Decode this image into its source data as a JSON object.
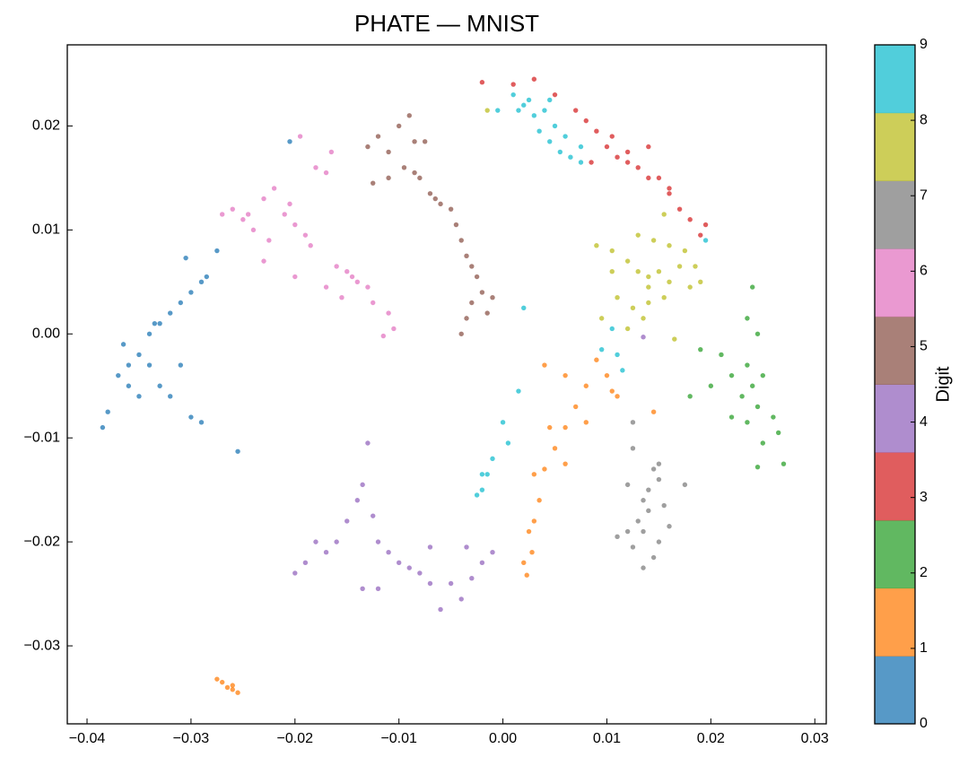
{
  "chart_data": {
    "type": "scatter",
    "title": "PHATE — MNIST",
    "xlim": [
      -0.0419,
      0.0311
    ],
    "ylim": [
      -0.0375,
      0.0278
    ],
    "xticks": [
      {
        "value": -0.04,
        "label": "−0.04"
      },
      {
        "value": -0.03,
        "label": "−0.03"
      },
      {
        "value": -0.02,
        "label": "−0.02"
      },
      {
        "value": -0.01,
        "label": "−0.01"
      },
      {
        "value": 0,
        "label": "0.00"
      },
      0.01,
      0.02,
      0.03
    ],
    "yticks": [
      {
        "value": -0.03,
        "label": "−0.03"
      },
      {
        "value": -0.02,
        "label": "−0.02"
      },
      {
        "value": -0.01,
        "label": "−0.01"
      },
      {
        "value": 0,
        "label": "0.00"
      },
      0.01,
      0.02
    ],
    "alpha": 0.75,
    "colorbar": {
      "label": "Digit",
      "clim": [
        0,
        9
      ],
      "ticks": [
        0,
        1,
        2,
        3,
        4,
        5,
        6,
        7,
        8,
        9
      ],
      "colors": [
        "#1f77b4",
        "#ff7f0e",
        "#2ca02c",
        "#d62728",
        "#9467bd",
        "#8c564b",
        "#e377c2",
        "#7f7f7f",
        "#bcbd22",
        "#17becf"
      ]
    },
    "series": [
      {
        "value": 0,
        "x": [
          -0.036,
          -0.035,
          -0.034,
          -0.033,
          -0.032,
          -0.031,
          -0.03,
          -0.036,
          -0.037,
          -0.035,
          -0.033,
          -0.031,
          -0.032,
          -0.03,
          -0.029,
          -0.0385,
          -0.038,
          -0.034,
          -0.029,
          -0.0305,
          -0.0285,
          -0.0335,
          -0.0365,
          -0.0255,
          -0.0275,
          -0.0205
        ],
        "y": [
          -0.003,
          -0.002,
          0.0,
          0.001,
          0.002,
          0.003,
          0.004,
          -0.005,
          -0.004,
          -0.006,
          -0.005,
          -0.003,
          -0.006,
          -0.008,
          -0.0085,
          -0.009,
          -0.0075,
          -0.003,
          0.005,
          0.0073,
          0.0055,
          0.001,
          -0.001,
          -0.0113,
          0.008,
          0.0185
        ]
      },
      {
        "value": 1,
        "x": [
          -0.027,
          -0.0265,
          -0.026,
          -0.0275,
          -0.0255,
          -0.026,
          0.004,
          0.006,
          0.008,
          0.01,
          0.0105,
          0.007,
          0.006,
          0.005,
          0.004,
          0.003,
          0.006,
          0.0035,
          0.003,
          0.0025,
          0.0028,
          0.002,
          0.0023,
          0.009,
          0.011,
          0.0145,
          0.008,
          0.0045
        ],
        "y": [
          -0.0335,
          -0.034,
          -0.0338,
          -0.0332,
          -0.0345,
          -0.0342,
          -0.003,
          -0.004,
          -0.005,
          -0.004,
          -0.0055,
          -0.007,
          -0.009,
          -0.011,
          -0.013,
          -0.0135,
          -0.0125,
          -0.016,
          -0.018,
          -0.019,
          -0.021,
          -0.022,
          -0.0232,
          -0.0025,
          -0.006,
          -0.0075,
          -0.0085,
          -0.009
        ]
      },
      {
        "value": 2,
        "x": [
          0.024,
          0.025,
          0.023,
          0.0245,
          0.026,
          0.022,
          0.021,
          0.019,
          0.02,
          0.018,
          0.0235,
          0.024,
          0.025,
          0.0245,
          0.027,
          0.0265,
          0.0235,
          0.022,
          0.0235,
          0.0245
        ],
        "y": [
          -0.005,
          -0.004,
          -0.006,
          -0.007,
          -0.008,
          -0.004,
          -0.002,
          -0.0015,
          -0.005,
          -0.006,
          0.0015,
          0.0045,
          -0.0105,
          -0.0128,
          -0.0125,
          -0.0095,
          -0.0085,
          -0.008,
          -0.003,
          0.0
        ]
      },
      {
        "value": 3,
        "x": [
          -0.002,
          0.001,
          0.003,
          0.005,
          0.007,
          0.008,
          0.009,
          0.01,
          0.011,
          0.012,
          0.013,
          0.014,
          0.015,
          0.016,
          0.017,
          0.018,
          0.019,
          0.0195,
          0.0105,
          0.012,
          0.0085,
          0.014,
          0.016
        ],
        "y": [
          0.0242,
          0.024,
          0.0245,
          0.023,
          0.0215,
          0.0205,
          0.0195,
          0.018,
          0.017,
          0.0175,
          0.016,
          0.015,
          0.015,
          0.014,
          0.012,
          0.011,
          0.0095,
          0.0105,
          0.019,
          0.0165,
          0.0165,
          0.018,
          0.0135
        ]
      },
      {
        "value": 4,
        "x": [
          -0.02,
          -0.019,
          -0.018,
          -0.017,
          -0.016,
          -0.015,
          -0.014,
          -0.0135,
          -0.013,
          -0.012,
          -0.011,
          -0.01,
          -0.009,
          -0.008,
          -0.007,
          -0.006,
          -0.005,
          -0.004,
          -0.003,
          -0.002,
          -0.001,
          -0.0035,
          -0.012,
          -0.0135,
          -0.007,
          -0.0125,
          0.0135
        ],
        "y": [
          -0.023,
          -0.022,
          -0.02,
          -0.021,
          -0.02,
          -0.018,
          -0.016,
          -0.0145,
          -0.0105,
          -0.02,
          -0.021,
          -0.022,
          -0.0225,
          -0.023,
          -0.024,
          -0.0265,
          -0.024,
          -0.0255,
          -0.0235,
          -0.022,
          -0.021,
          -0.0205,
          -0.0245,
          -0.0245,
          -0.0205,
          -0.0175,
          -0.0003
        ]
      },
      {
        "value": 5,
        "x": [
          -0.013,
          -0.012,
          -0.011,
          -0.01,
          -0.009,
          -0.0085,
          -0.0095,
          -0.008,
          -0.007,
          -0.0065,
          -0.006,
          -0.005,
          -0.0045,
          -0.004,
          -0.0035,
          -0.003,
          -0.0025,
          -0.002,
          -0.003,
          -0.004,
          -0.0035,
          -0.0015,
          -0.001,
          -0.011,
          -0.0125,
          -0.0075,
          -0.0085
        ],
        "y": [
          0.018,
          0.019,
          0.0175,
          0.02,
          0.021,
          0.0185,
          0.016,
          0.015,
          0.0135,
          0.013,
          0.0125,
          0.012,
          0.0105,
          0.009,
          0.0075,
          0.0065,
          0.0055,
          0.004,
          0.003,
          0.0,
          0.0015,
          0.002,
          0.0035,
          0.015,
          0.0145,
          0.0185,
          0.0155
        ]
      },
      {
        "value": 6,
        "x": [
          -0.027,
          -0.026,
          -0.025,
          -0.024,
          -0.023,
          -0.022,
          -0.021,
          -0.0205,
          -0.02,
          -0.019,
          -0.018,
          -0.017,
          -0.0165,
          -0.0195,
          -0.0185,
          -0.016,
          -0.015,
          -0.014,
          -0.013,
          -0.0125,
          -0.011,
          -0.0105,
          -0.0115,
          -0.0145,
          -0.017,
          -0.02,
          -0.023,
          -0.0225,
          -0.0155,
          -0.0245
        ],
        "y": [
          0.0115,
          0.012,
          0.011,
          0.01,
          0.013,
          0.014,
          0.0115,
          0.0125,
          0.0105,
          0.0095,
          0.016,
          0.0155,
          0.0175,
          0.019,
          0.0085,
          0.0065,
          0.006,
          0.005,
          0.0045,
          0.003,
          0.002,
          0.0005,
          -0.0002,
          0.0055,
          0.0045,
          0.0055,
          0.007,
          0.009,
          0.0035,
          0.0115
        ]
      },
      {
        "value": 7,
        "x": [
          0.012,
          0.013,
          0.014,
          0.0135,
          0.014,
          0.015,
          0.0145,
          0.0155,
          0.016,
          0.015,
          0.0145,
          0.0125,
          0.011,
          0.0135,
          0.0175,
          0.012,
          0.0125,
          0.0125,
          0.0135,
          0.015
        ],
        "y": [
          -0.019,
          -0.018,
          -0.017,
          -0.016,
          -0.015,
          -0.014,
          -0.013,
          -0.0165,
          -0.0185,
          -0.02,
          -0.0215,
          -0.0205,
          -0.0195,
          -0.019,
          -0.0145,
          -0.0145,
          -0.011,
          -0.0085,
          -0.0225,
          -0.0125
        ]
      },
      {
        "value": 8,
        "x": [
          0.009,
          0.0105,
          0.012,
          0.013,
          0.014,
          0.015,
          0.016,
          0.017,
          0.0175,
          0.016,
          0.0145,
          0.013,
          0.0185,
          0.019,
          0.018,
          0.0155,
          0.014,
          0.0125,
          0.011,
          0.0105,
          0.0135,
          0.0155,
          0.0095,
          0.012,
          -0.0015,
          0.0165,
          0.014
        ],
        "y": [
          0.0085,
          0.008,
          0.007,
          0.006,
          0.0055,
          0.006,
          0.005,
          0.0065,
          0.008,
          0.0085,
          0.009,
          0.0095,
          0.0065,
          0.005,
          0.0045,
          0.0035,
          0.003,
          0.0025,
          0.0035,
          0.006,
          0.0015,
          0.0115,
          0.0015,
          0.0005,
          0.0215,
          -0.0005,
          0.0045
        ]
      },
      {
        "value": 9,
        "x": [
          0.001,
          0.002,
          0.003,
          0.004,
          0.005,
          0.0035,
          0.0045,
          0.006,
          0.0055,
          0.0065,
          0.0075,
          0.0025,
          0.0015,
          0.0045,
          0.0075,
          -0.0005,
          0.0105,
          0.011,
          0.0115,
          0.0095,
          0.0015,
          0.0005,
          -0.001,
          -0.002,
          -0.002,
          -0.0015,
          -0.0025,
          0.0,
          0.002,
          0.0195
        ],
        "y": [
          0.023,
          0.022,
          0.021,
          0.0215,
          0.02,
          0.0195,
          0.0185,
          0.019,
          0.0175,
          0.017,
          0.018,
          0.0225,
          0.0215,
          0.0225,
          0.0165,
          0.0215,
          0.0005,
          -0.002,
          -0.0035,
          -0.0015,
          -0.0055,
          -0.0105,
          -0.012,
          -0.015,
          -0.0135,
          -0.0135,
          -0.0155,
          -0.0085,
          0.0025,
          0.009
        ]
      }
    ]
  }
}
